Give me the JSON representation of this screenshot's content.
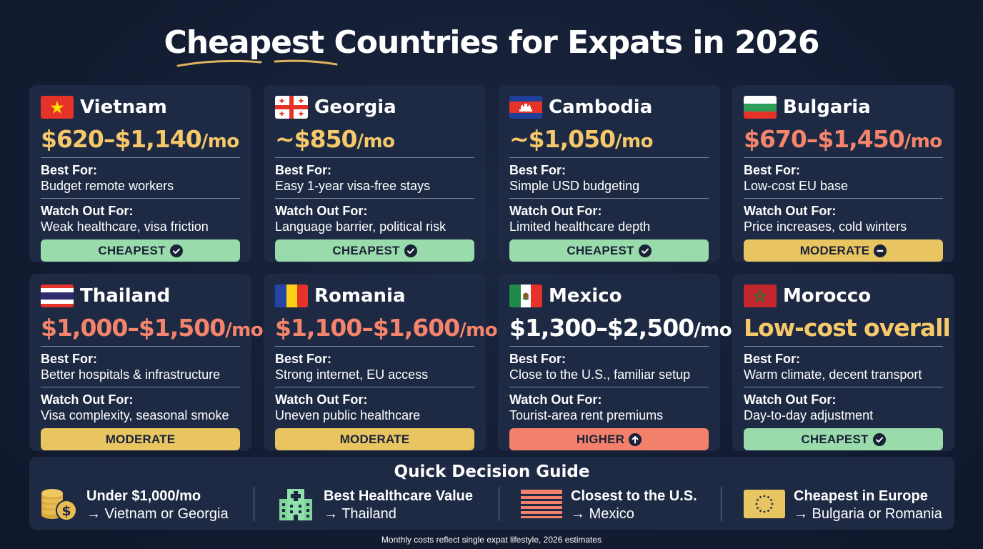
{
  "title": "Cheapest Countries for Expats in 2026",
  "labels": {
    "best_for": "Best For:",
    "watch_out": "Watch Out For:"
  },
  "colors": {
    "gold": "#f5c86a",
    "coral": "#f5846c",
    "white": "#ffffff",
    "cheapest": "#9adbab",
    "moderate": "#e8c560",
    "higher": "#f3806b",
    "background": "#131d33",
    "card": "#1e2a44"
  },
  "countries": [
    {
      "name": "Vietnam",
      "flag": "vietnam-flag",
      "price": "$620–$1,140",
      "unit": "/mo",
      "price_color": "#f5c86a",
      "best_for": "Budget remote workers",
      "watch_out": "Weak healthcare, visa friction",
      "badge": "CHEAPEST",
      "badge_type": "cheap",
      "badge_icon": "check-circle-icon"
    },
    {
      "name": "Georgia",
      "flag": "georgia-flag",
      "price": "~$850",
      "unit": "/mo",
      "price_color": "#f5c86a",
      "best_for": "Easy 1-year visa-free stays",
      "watch_out": "Language barrier, political risk",
      "badge": "CHEAPEST",
      "badge_type": "cheap",
      "badge_icon": "check-circle-icon"
    },
    {
      "name": "Cambodia",
      "flag": "cambodia-flag",
      "price": "~$1,050",
      "unit": "/mo",
      "price_color": "#f5c86a",
      "best_for": "Simple USD budgeting",
      "watch_out": "Limited healthcare depth",
      "badge": "CHEAPEST",
      "badge_type": "cheap",
      "badge_icon": "check-circle-icon"
    },
    {
      "name": "Bulgaria",
      "flag": "bulgaria-flag",
      "price": "$670–$1,450",
      "unit": "/mo",
      "price_color": "#f5846c",
      "best_for": "Low-cost EU base",
      "watch_out": "Price increases, cold winters",
      "badge": "MODERATE",
      "badge_type": "mod",
      "badge_icon": "minus-circle-icon"
    },
    {
      "name": "Thailand",
      "flag": "thailand-flag",
      "price": "$1,000–$1,500",
      "unit": "/mo",
      "price_color": "#f5846c",
      "best_for": "Better hospitals & infrastructure",
      "watch_out": "Visa complexity, seasonal smoke",
      "badge": "MODERATE",
      "badge_type": "mod",
      "badge_icon": ""
    },
    {
      "name": "Romania",
      "flag": "romania-flag",
      "price": "$1,100–$1,600",
      "unit": "/mo",
      "price_color": "#f5846c",
      "best_for": "Strong internet, EU access",
      "watch_out": "Uneven public healthcare",
      "badge": "MODERATE",
      "badge_type": "mod",
      "badge_icon": ""
    },
    {
      "name": "Mexico",
      "flag": "mexico-flag",
      "price": "$1,300–$2,500",
      "unit": "/mo",
      "price_color": "#ffffff",
      "best_for": "Close to the U.S., familiar setup",
      "watch_out": "Tourist-area rent premiums",
      "badge": "HIGHER",
      "badge_type": "high",
      "badge_icon": "arrow-up-circle-icon"
    },
    {
      "name": "Morocco",
      "flag": "morocco-flag",
      "price": "Low-cost overall",
      "unit": "",
      "price_color": "#f5c86a",
      "best_for": "Warm climate, decent transport",
      "watch_out": "Day-to-day adjustment",
      "badge": "CHEAPEST",
      "badge_type": "cheap",
      "badge_icon": "check-circle-icon"
    }
  ],
  "guide": {
    "title": "Quick Decision Guide",
    "items": [
      {
        "heading": "Under $1,000/mo",
        "sub": "→ Vietnam or Georgia",
        "icon": "coins-icon"
      },
      {
        "heading": "Best Healthcare Value",
        "sub": "→ Thailand",
        "icon": "hospital-icon"
      },
      {
        "heading": "Closest to the U.S.",
        "sub": "→ Mexico",
        "icon": "us-flag-icon"
      },
      {
        "heading": "Cheapest in Europe",
        "sub": "→ Bulgaria or Romania",
        "icon": "eu-flag-icon"
      }
    ]
  },
  "footnote": "Monthly costs reflect single expat lifestyle, 2026 estimates"
}
